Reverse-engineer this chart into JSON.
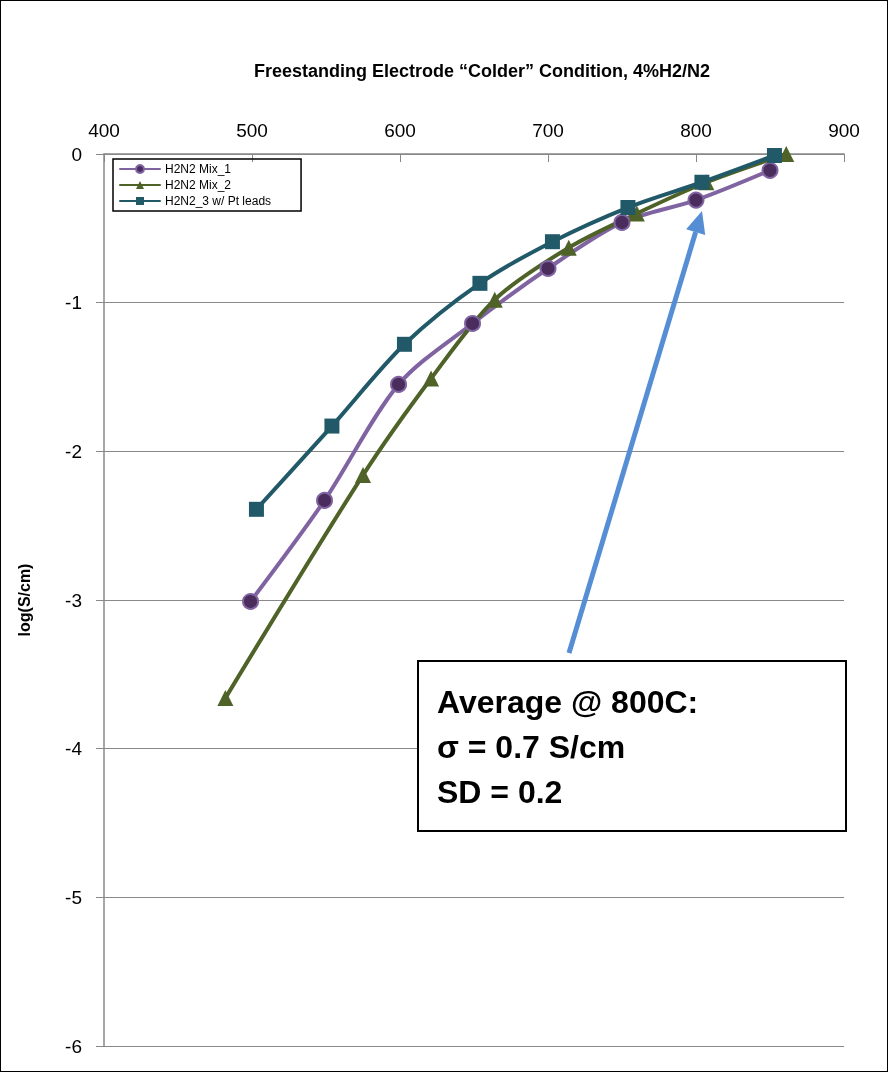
{
  "chart_data": {
    "type": "line",
    "title": "Freestanding Electrode “Colder” Condition, 4%H2/N2",
    "ylabel": "log(S/cm)",
    "xlim": [
      400,
      900
    ],
    "xticks": [
      400,
      500,
      600,
      700,
      800,
      900
    ],
    "ylim": [
      -6,
      0
    ],
    "yticks": [
      -6,
      -5,
      -4,
      -3,
      -2,
      -1,
      0
    ],
    "grid": "y",
    "legend": "top left",
    "series": [
      {
        "name": "H2N2 Mix_1",
        "color": "#8064a2",
        "marker": "circle",
        "x": [
          499,
          549,
          599,
          649,
          700,
          750,
          800,
          850
        ],
        "values": [
          -3.01,
          -2.33,
          -1.55,
          -1.14,
          -0.77,
          -0.46,
          -0.31,
          -0.11
        ]
      },
      {
        "name": "H2N2 Mix_2",
        "color": "#4f6228",
        "marker": "triangle",
        "x": [
          482,
          575,
          621,
          664,
          714,
          760,
          807,
          861
        ],
        "values": [
          -3.66,
          -2.16,
          -1.51,
          -0.98,
          -0.63,
          -0.4,
          -0.19,
          0
        ]
      },
      {
        "name": "H2N2_3 w/ Pt leads",
        "color": "#215968",
        "marker": "square",
        "x": [
          503,
          554,
          603,
          654,
          703,
          754,
          804,
          853
        ],
        "values": [
          -2.39,
          -1.83,
          -1.28,
          -0.87,
          -0.59,
          -0.36,
          -0.19,
          -0.01
        ]
      }
    ],
    "annotations": [
      "Average @ 800C:\nσ = 0.7 S/cm\nSD = 0.2"
    ]
  }
}
